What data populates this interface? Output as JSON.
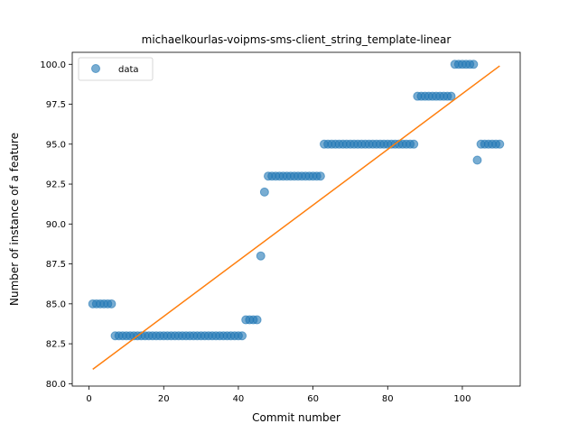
{
  "chart_data": {
    "type": "scatter",
    "title": "michaelkourlas-voipms-sms-client_string_template-linear",
    "xlabel": "Commit number",
    "ylabel": "Number of instance of a feature",
    "xlim": [
      -4.5,
      115.5
    ],
    "ylim": [
      79.85,
      100.75
    ],
    "xticks": [
      0,
      20,
      40,
      60,
      80,
      100
    ],
    "xtick_labels": [
      "0",
      "20",
      "40",
      "60",
      "80",
      "100"
    ],
    "yticks": [
      80.0,
      82.5,
      85.0,
      87.5,
      90.0,
      92.5,
      95.0,
      97.5,
      100.0
    ],
    "ytick_labels": [
      "80.0",
      "82.5",
      "85.0",
      "87.5",
      "90.0",
      "92.5",
      "95.0",
      "97.5",
      "100.0"
    ],
    "grid": false,
    "legend": {
      "position": "top-left",
      "entries": [
        "data"
      ]
    },
    "colors": {
      "points": "#1f77b4",
      "fit_line": "#ff7f0e"
    },
    "series": [
      {
        "name": "data",
        "x": [
          1,
          2,
          3,
          4,
          5,
          6,
          7,
          8,
          9,
          10,
          11,
          12,
          13,
          14,
          15,
          16,
          17,
          18,
          19,
          20,
          21,
          22,
          23,
          24,
          25,
          26,
          27,
          28,
          29,
          30,
          31,
          32,
          33,
          34,
          35,
          36,
          37,
          38,
          39,
          40,
          41,
          42,
          43,
          44,
          45,
          46,
          47,
          48,
          49,
          50,
          51,
          52,
          53,
          54,
          55,
          56,
          57,
          58,
          59,
          60,
          61,
          62,
          63,
          64,
          65,
          66,
          67,
          68,
          69,
          70,
          71,
          72,
          73,
          74,
          75,
          76,
          77,
          78,
          79,
          80,
          81,
          82,
          83,
          84,
          85,
          86,
          87,
          88,
          89,
          90,
          91,
          92,
          93,
          94,
          95,
          96,
          97,
          98,
          99,
          100,
          101,
          102,
          103,
          104,
          105,
          106,
          107,
          108,
          109,
          110
        ],
        "y": [
          85,
          85,
          85,
          85,
          85,
          85,
          83,
          83,
          83,
          83,
          83,
          83,
          83,
          83,
          83,
          83,
          83,
          83,
          83,
          83,
          83,
          83,
          83,
          83,
          83,
          83,
          83,
          83,
          83,
          83,
          83,
          83,
          83,
          83,
          83,
          83,
          83,
          83,
          83,
          83,
          83,
          84,
          84,
          84,
          84,
          88,
          92,
          93,
          93,
          93,
          93,
          93,
          93,
          93,
          93,
          93,
          93,
          93,
          93,
          93,
          93,
          93,
          95,
          95,
          95,
          95,
          95,
          95,
          95,
          95,
          95,
          95,
          95,
          95,
          95,
          95,
          95,
          95,
          95,
          95,
          95,
          95,
          95,
          95,
          95,
          95,
          95,
          98,
          98,
          98,
          98,
          98,
          98,
          98,
          98,
          98,
          98,
          100,
          100,
          100,
          100,
          100,
          100,
          94,
          95,
          95,
          95,
          95,
          95,
          95
        ]
      },
      {
        "name": "",
        "type": "line",
        "x": [
          1,
          110
        ],
        "y": [
          80.9,
          99.9
        ]
      }
    ]
  }
}
